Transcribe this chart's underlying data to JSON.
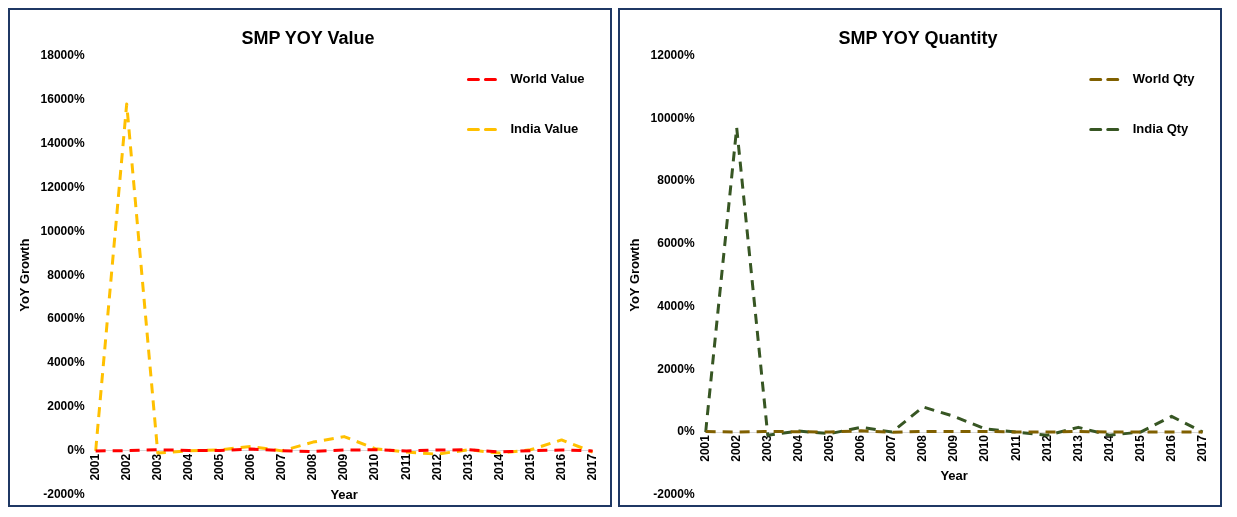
{
  "chart_data": [
    {
      "type": "line",
      "title": "SMP YOY Value",
      "xlabel": "Year",
      "ylabel": "YoY Growth",
      "categories": [
        "2001",
        "2002",
        "2003",
        "2004",
        "2005",
        "2006",
        "2007",
        "2008",
        "2009",
        "2010",
        "2011",
        "2012",
        "2013",
        "2014",
        "2015",
        "2016",
        "2017"
      ],
      "series": [
        {
          "name": "World Value",
          "color": "#ff0000",
          "values": [
            0,
            10,
            50,
            20,
            20,
            80,
            10,
            -30,
            40,
            50,
            0,
            40,
            50,
            -50,
            10,
            40,
            0
          ]
        },
        {
          "name": "India Value",
          "color": "#ffc000",
          "values": [
            0,
            15800,
            -100,
            0,
            50,
            200,
            0,
            400,
            650,
            100,
            -50,
            -150,
            50,
            -100,
            50,
            500,
            -50
          ]
        }
      ],
      "ylim": [
        -2000,
        18000
      ],
      "yticks": [
        {
          "value": -2000,
          "label": "-2000%"
        },
        {
          "value": 0,
          "label": "0%"
        },
        {
          "value": 2000,
          "label": "2000%"
        },
        {
          "value": 4000,
          "label": "4000%"
        },
        {
          "value": 6000,
          "label": "6000%"
        },
        {
          "value": 8000,
          "label": "8000%"
        },
        {
          "value": 10000,
          "label": "10000%"
        },
        {
          "value": 12000,
          "label": "12000%"
        },
        {
          "value": 14000,
          "label": "14000%"
        },
        {
          "value": 16000,
          "label": "16000%"
        },
        {
          "value": 18000,
          "label": "18000%"
        }
      ],
      "legend": "top right",
      "line_style": "dashed",
      "marker": "none"
    },
    {
      "type": "line",
      "title": "SMP YOY Quantity",
      "xlabel": "Year",
      "ylabel": "YoY Growth",
      "categories": [
        "2001",
        "2002",
        "2003",
        "2004",
        "2005",
        "2006",
        "2007",
        "2008",
        "2009",
        "2010",
        "2011",
        "2012",
        "2013",
        "2014",
        "2015",
        "2016",
        "2017"
      ],
      "series": [
        {
          "name": "World Qty",
          "color": "#806000",
          "values": [
            20,
            0,
            20,
            10,
            0,
            40,
            -10,
            20,
            20,
            20,
            0,
            0,
            20,
            0,
            0,
            0,
            0
          ]
        },
        {
          "name": "India Qty",
          "color": "#375623",
          "values": [
            0,
            9700,
            -100,
            30,
            -50,
            150,
            0,
            800,
            500,
            100,
            0,
            -100,
            150,
            -100,
            0,
            500,
            0
          ]
        }
      ],
      "ylim": [
        -2000,
        12000
      ],
      "yticks": [
        {
          "value": -2000,
          "label": "-2000%"
        },
        {
          "value": 0,
          "label": "0%"
        },
        {
          "value": 2000,
          "label": "2000%"
        },
        {
          "value": 4000,
          "label": "4000%"
        },
        {
          "value": 6000,
          "label": "6000%"
        },
        {
          "value": 8000,
          "label": "8000%"
        },
        {
          "value": 10000,
          "label": "10000%"
        },
        {
          "value": 12000,
          "label": "12000%"
        }
      ],
      "legend": "top right",
      "line_style": "dashed",
      "marker": "none"
    }
  ]
}
